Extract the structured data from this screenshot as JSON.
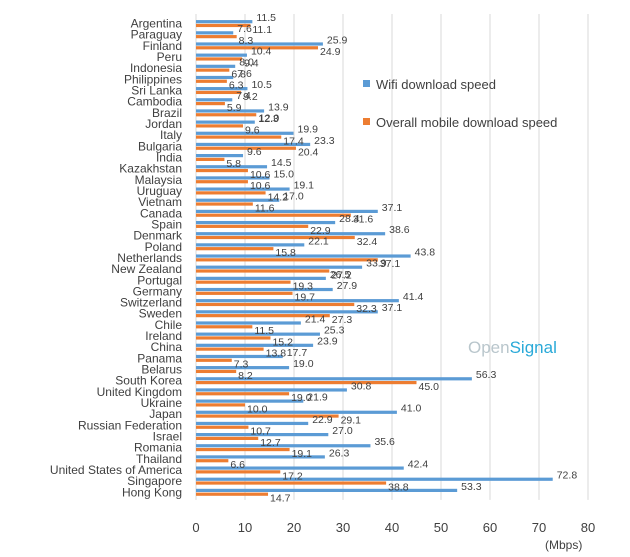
{
  "chart_data": {
    "type": "bar",
    "orientation": "horizontal",
    "title": "",
    "xlabel": "(Mbps)",
    "ylabel": "",
    "xlim": [
      0,
      80
    ],
    "xticks": [
      "0",
      "10",
      "20",
      "30",
      "40",
      "50",
      "60",
      "70",
      "80"
    ],
    "grid": true,
    "legend_position": "right",
    "brand": {
      "part1": "Open",
      "part2": "Signal"
    },
    "categories": [
      "Argentina",
      "Paraguay",
      "Finland",
      "Peru",
      "Indonesia",
      "Philippines",
      "Sri Lanka",
      "Cambodia",
      "Brazil",
      "Jordan",
      "Italy",
      "Bulgaria",
      "India",
      "Kazakhstan",
      "Malaysia",
      "Uruguay",
      "Vietnam",
      "Canada",
      "Spain",
      "Denmark",
      "Poland",
      "Netherlands",
      "New Zealand",
      "Portugal",
      "Germany",
      "Switzerland",
      "Sweden",
      "Chile",
      "Ireland",
      "China",
      "Panama",
      "Belarus",
      "South Korea",
      "United Kingdom",
      "Ukraine",
      "Japan",
      "Russian Federation",
      "Israel",
      "Romania",
      "Thailand",
      "United States of America",
      "Singapore",
      "Hong Kong"
    ],
    "series": [
      {
        "name": "Wifi download speed",
        "color": "#5b9bd5",
        "values": [
          11.5,
          7.6,
          25.9,
          10.4,
          8.0,
          7.6,
          10.5,
          7.4,
          13.9,
          12.0,
          19.9,
          23.3,
          9.6,
          14.5,
          15.0,
          19.1,
          17.0,
          37.1,
          28.4,
          38.6,
          22.1,
          43.8,
          33.9,
          26.5,
          27.9,
          41.4,
          37.1,
          21.4,
          25.3,
          23.9,
          17.7,
          19.0,
          56.3,
          30.8,
          21.9,
          41.0,
          22.9,
          27.0,
          35.6,
          26.3,
          42.4,
          72.8,
          53.3
        ],
        "labels": [
          "11.5",
          "7.6",
          "25.9",
          "10.4",
          "8.0",
          "7.6",
          "10.5",
          "7.4",
          "13.9",
          "12.0",
          "19.9",
          "23.3",
          "9.6",
          "14.5",
          "15.0",
          "19.1",
          "17.0",
          "37.1",
          "28.4",
          "38.6",
          "22.1",
          "43.8",
          "33.9",
          "26.5",
          "27.9",
          "41.4",
          "37.1",
          "21.4",
          "25.3",
          "23.9",
          "17.7",
          "19.0",
          "56.3",
          "30.8",
          "21.9",
          "41.0",
          "22.9",
          "27.0",
          "35.6",
          "26.3",
          "42.4",
          "72.8",
          "53.3"
        ]
      },
      {
        "name": "Overall mobile download speed",
        "color": "#ed7d31",
        "values": [
          11.1,
          8.3,
          24.9,
          9.4,
          6.8,
          6.3,
          9.2,
          5.9,
          12.3,
          9.6,
          17.4,
          20.4,
          5.8,
          10.6,
          10.6,
          14.2,
          11.6,
          31.6,
          22.9,
          32.4,
          15.8,
          37.1,
          27.2,
          19.3,
          19.7,
          32.3,
          27.3,
          11.5,
          15.2,
          13.8,
          7.3,
          8.2,
          45.0,
          19.0,
          10.0,
          29.1,
          10.7,
          12.7,
          19.1,
          6.6,
          17.2,
          38.8,
          14.7
        ],
        "labels": [
          "11.1",
          "8.3",
          "24.9",
          "9.4",
          "6.8",
          "6.3",
          "9.2",
          "5.9",
          "12.3",
          "9.6",
          "17.4",
          "20.4",
          "5.8",
          "10.6",
          "10.6",
          "14.2",
          "11.6",
          "31.6",
          "22.9",
          "32.4",
          "15.8",
          "37.1",
          "27.2",
          "19.3",
          "19.7",
          "32.3",
          "27.3",
          "11.5",
          "15.2",
          "13.8",
          "7.3",
          "8.2",
          "45.0",
          "19.0",
          "10.0",
          "29.1",
          "10.7",
          "12.7",
          "19.1",
          "6.6",
          "17.2",
          "38.8",
          "14.7"
        ]
      }
    ]
  }
}
